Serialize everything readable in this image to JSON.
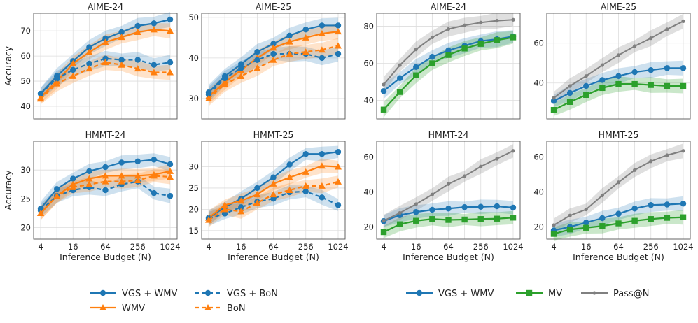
{
  "colors": {
    "blue": "#1f77b4",
    "orange": "#ff7f0e",
    "green": "#2ca02c",
    "gray": "#808080",
    "grid": "#dddddd",
    "axis": "#555555"
  },
  "shared": {
    "xlabel": "Inference Budget (N)",
    "ylabel": "Accuracy",
    "xticks": [
      "4",
      "16",
      "64",
      "256",
      "1024"
    ],
    "x": [
      4,
      8,
      16,
      32,
      64,
      128,
      256,
      512,
      1024
    ]
  },
  "legends": {
    "left": [
      "VGS + WMV",
      "WMV",
      "VGS + BoN",
      "BoN"
    ],
    "right": [
      "VGS + WMV",
      "MV",
      "Pass@N"
    ]
  },
  "chart_data": [
    {
      "type": "line",
      "title": "AIME-24",
      "ylim": [
        35,
        77
      ],
      "yticks": [
        40,
        50,
        60,
        70
      ],
      "series": [
        {
          "name": "VGS + WMV",
          "values": [
            45,
            52,
            58,
            63.5,
            67,
            69.5,
            72,
            73,
            74.5
          ]
        },
        {
          "name": "WMV",
          "values": [
            43.5,
            50,
            57,
            61.5,
            65.5,
            67.5,
            69.5,
            70.5,
            70
          ]
        },
        {
          "name": "VGS + BoN",
          "values": [
            45,
            51,
            54.5,
            57,
            59,
            58.5,
            58.5,
            56.5,
            57.5
          ]
        },
        {
          "name": "BoN",
          "values": [
            43,
            49,
            52,
            55,
            57.5,
            56.5,
            55,
            53.5,
            53.5
          ]
        }
      ]
    },
    {
      "type": "line",
      "title": "AIME-25",
      "ylim": [
        25,
        51
      ],
      "yticks": [
        30,
        40,
        50
      ],
      "series": [
        {
          "name": "VGS + WMV",
          "values": [
            31.5,
            35.5,
            38.5,
            41.5,
            43.5,
            45.5,
            47,
            48,
            48
          ]
        },
        {
          "name": "WMV",
          "values": [
            30.5,
            34,
            37,
            40,
            42.5,
            44,
            45,
            46,
            46.5
          ]
        },
        {
          "name": "VGS + BoN",
          "values": [
            31,
            35,
            37.5,
            39.5,
            41,
            41,
            41,
            40,
            41
          ]
        },
        {
          "name": "BoN",
          "values": [
            30,
            33.5,
            35.5,
            37.5,
            39.5,
            41,
            41.5,
            42,
            43
          ]
        }
      ]
    },
    {
      "type": "line",
      "title": "AIME-24",
      "ylim": [
        30,
        87
      ],
      "yticks": [
        40,
        60,
        80
      ],
      "series": [
        {
          "name": "VGS + WMV",
          "values": [
            45,
            52,
            58,
            63.5,
            67,
            69.5,
            72,
            73,
            74.5
          ]
        },
        {
          "name": "MV",
          "values": [
            35,
            44.5,
            53.5,
            60,
            64.5,
            68,
            70.5,
            72.5,
            74
          ]
        },
        {
          "name": "Pass@N",
          "values": [
            48.5,
            59,
            67.5,
            74,
            78.5,
            80.5,
            82,
            83,
            83.5
          ]
        }
      ]
    },
    {
      "type": "line",
      "title": "AIME-25",
      "ylim": [
        22,
        75
      ],
      "yticks": [
        40,
        60
      ],
      "series": [
        {
          "name": "VGS + WMV",
          "values": [
            31,
            35,
            38.5,
            41.5,
            43.5,
            45.5,
            46.5,
            47.5,
            47.5
          ]
        },
        {
          "name": "MV",
          "values": [
            26.5,
            30.5,
            34,
            37.5,
            39.5,
            39.5,
            39,
            38.5,
            38.5
          ]
        },
        {
          "name": "Pass@N",
          "values": [
            32.5,
            38.5,
            43.5,
            49,
            54,
            58.5,
            62.5,
            67,
            71
          ]
        }
      ]
    },
    {
      "type": "line",
      "title": "HMMT-24",
      "ylim": [
        18,
        35
      ],
      "yticks": [
        20,
        25,
        30
      ],
      "series": [
        {
          "name": "VGS + WMV",
          "values": [
            23.3,
            26.7,
            28.5,
            29.8,
            30.5,
            31.3,
            31.5,
            31.8,
            31
          ]
        },
        {
          "name": "WMV",
          "values": [
            22.5,
            25.5,
            27.5,
            28.5,
            29,
            29,
            29,
            29.2,
            29.8
          ]
        },
        {
          "name": "VGS + BoN",
          "values": [
            23,
            25.5,
            26.5,
            27,
            26.5,
            27.5,
            28,
            26,
            25.5
          ]
        },
        {
          "name": "BoN",
          "values": [
            22.5,
            25.5,
            27,
            27.5,
            28,
            28,
            28.2,
            29,
            28.8
          ]
        }
      ]
    },
    {
      "type": "line",
      "title": "HMMT-25",
      "ylim": [
        13,
        36
      ],
      "yticks": [
        15,
        20,
        25,
        30
      ],
      "series": [
        {
          "name": "VGS + WMV",
          "values": [
            18,
            20.5,
            22.5,
            25,
            27.5,
            30.5,
            33,
            33,
            33.5
          ]
        },
        {
          "name": "WMV",
          "values": [
            18,
            21,
            22,
            23.5,
            26,
            27.5,
            28.8,
            30.2,
            30
          ]
        },
        {
          "name": "VGS + BoN",
          "values": [
            17.8,
            19,
            20.5,
            21.8,
            22.5,
            24,
            24.2,
            22.8,
            21
          ]
        },
        {
          "name": "BoN",
          "values": [
            17.5,
            20,
            19.5,
            21.5,
            23.5,
            24.5,
            25.5,
            25.5,
            26.5
          ]
        }
      ]
    },
    {
      "type": "line",
      "title": "HMMT-24",
      "ylim": [
        13,
        69
      ],
      "yticks": [
        20,
        40,
        60
      ],
      "series": [
        {
          "name": "VGS + WMV",
          "values": [
            23.3,
            26.7,
            28.5,
            29.8,
            30.5,
            31.3,
            31.5,
            31.8,
            31
          ]
        },
        {
          "name": "MV",
          "values": [
            17,
            21.5,
            23.5,
            24.5,
            24,
            24.2,
            24.5,
            24.7,
            25.3
          ]
        },
        {
          "name": "Pass@N",
          "values": [
            23.5,
            28,
            33,
            38.5,
            44.5,
            49,
            54.5,
            59,
            63.5
          ]
        }
      ]
    },
    {
      "type": "line",
      "title": "HMMT-25",
      "ylim": [
        13,
        69
      ],
      "yticks": [
        20,
        40,
        60
      ],
      "series": [
        {
          "name": "VGS + WMV",
          "values": [
            18,
            20,
            22.5,
            25,
            27.5,
            30.5,
            32.5,
            32.8,
            33.3
          ]
        },
        {
          "name": "MV",
          "values": [
            16,
            18.5,
            19.5,
            20.5,
            22,
            23.5,
            24.5,
            25.2,
            25.5
          ]
        },
        {
          "name": "Pass@N",
          "values": [
            21,
            26.5,
            30,
            38,
            45.5,
            52.5,
            57.5,
            61,
            63.5
          ]
        }
      ]
    }
  ]
}
